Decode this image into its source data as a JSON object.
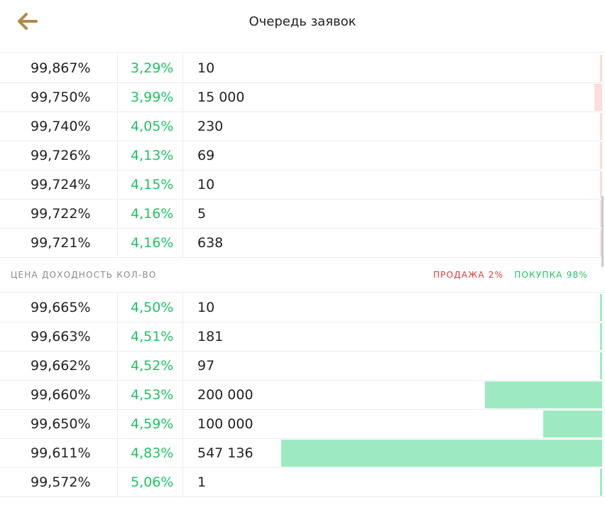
{
  "header": {
    "title": "Очередь заявок",
    "back_icon": "arrow-left-icon",
    "back_color": "#b08a4a"
  },
  "column_headers": "ЦЕНА ДОХОДНОСТЬ КОЛ-ВО",
  "sell_label": "ПРОДАЖА 2%",
  "buy_label": "ПОКУПКА 98%",
  "colors": {
    "sell": "#e43a3a",
    "buy": "#1ec463",
    "sell_bar": "#fcdcdc",
    "buy_bar": "#9deac1"
  },
  "sell_orders": [
    {
      "price": "99,867%",
      "yield": "3,29%",
      "qty": "10",
      "depth_pct": 0
    },
    {
      "price": "99,750%",
      "yield": "3,99%",
      "qty": "15 000",
      "depth_pct": 1.3
    },
    {
      "price": "99,740%",
      "yield": "4,05%",
      "qty": "230",
      "depth_pct": 0
    },
    {
      "price": "99,726%",
      "yield": "4,13%",
      "qty": "69",
      "depth_pct": 0
    },
    {
      "price": "99,724%",
      "yield": "4,15%",
      "qty": "10",
      "depth_pct": 0
    },
    {
      "price": "99,722%",
      "yield": "4,16%",
      "qty": "5",
      "depth_pct": 0
    },
    {
      "price": "99,721%",
      "yield": "4,16%",
      "qty": "638",
      "depth_pct": 0
    }
  ],
  "buy_orders": [
    {
      "price": "99,665%",
      "yield": "4,50%",
      "qty": "10",
      "depth_pct": 0
    },
    {
      "price": "99,663%",
      "yield": "4,51%",
      "qty": "181",
      "depth_pct": 0
    },
    {
      "price": "99,662%",
      "yield": "4,52%",
      "qty": "97",
      "depth_pct": 0
    },
    {
      "price": "99,660%",
      "yield": "4,53%",
      "qty": "200 000",
      "depth_pct": 19.5
    },
    {
      "price": "99,650%",
      "yield": "4,59%",
      "qty": "100 000",
      "depth_pct": 9.8
    },
    {
      "price": "99,611%",
      "yield": "4,83%",
      "qty": "547 136",
      "depth_pct": 53.3
    },
    {
      "price": "99,572%",
      "yield": "5,06%",
      "qty": "1",
      "depth_pct": 0
    }
  ]
}
